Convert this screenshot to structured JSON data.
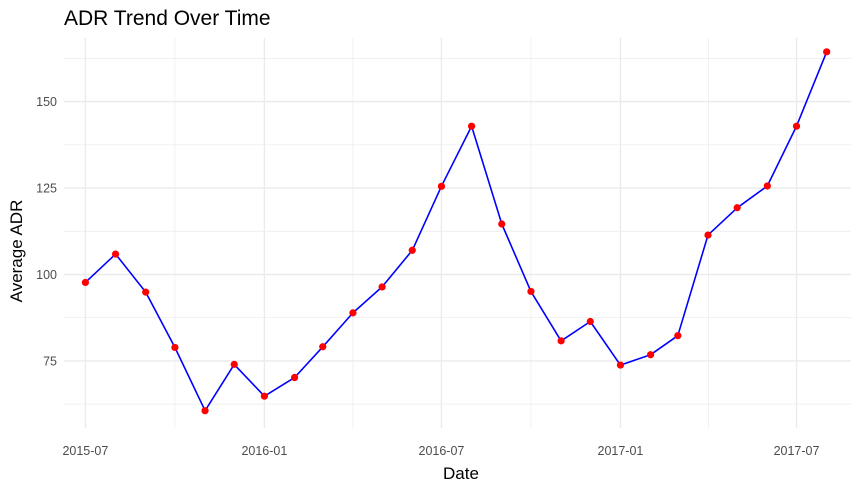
{
  "chart_data": {
    "type": "line",
    "title": "ADR Trend Over Time",
    "xlabel": "Date",
    "ylabel": "Average ADR",
    "x_tick_labels": [
      "2015-07",
      "2016-01",
      "2016-07",
      "2017-01",
      "2017-07"
    ],
    "y_tick_labels": [
      "75",
      "100",
      "125",
      "150"
    ],
    "y_ticks": [
      75,
      100,
      125,
      150
    ],
    "ylim": [
      55.6,
      168.4
    ],
    "xlim": [
      "2015-06-09",
      "2017-08-26"
    ],
    "grid": true,
    "legend": "none",
    "colors": {
      "line": "#0000ff",
      "points": "#ff0000",
      "grid": "#ebebeb"
    },
    "series": [
      {
        "x": [
          "2015-07-01",
          "2015-08-01",
          "2015-09-01",
          "2015-10-01",
          "2015-11-01",
          "2015-12-01",
          "2016-01-01",
          "2016-02-01",
          "2016-03-01",
          "2016-04-01",
          "2016-05-01",
          "2016-06-01",
          "2016-07-01",
          "2016-08-01",
          "2016-09-01",
          "2016-10-01",
          "2016-11-01",
          "2016-12-01",
          "2017-01-01",
          "2017-02-01",
          "2017-03-01",
          "2017-04-01",
          "2017-05-01",
          "2017-06-01",
          "2017-07-01",
          "2017-08-01"
        ],
        "values": [
          97.7,
          105.9,
          94.9,
          78.9,
          60.6,
          74.0,
          64.8,
          70.2,
          79.1,
          88.9,
          96.4,
          107.0,
          125.5,
          142.9,
          114.6,
          95.1,
          80.8,
          86.4,
          73.8,
          76.8,
          82.3,
          111.4,
          119.3,
          125.6,
          142.9,
          164.4
        ]
      }
    ]
  }
}
